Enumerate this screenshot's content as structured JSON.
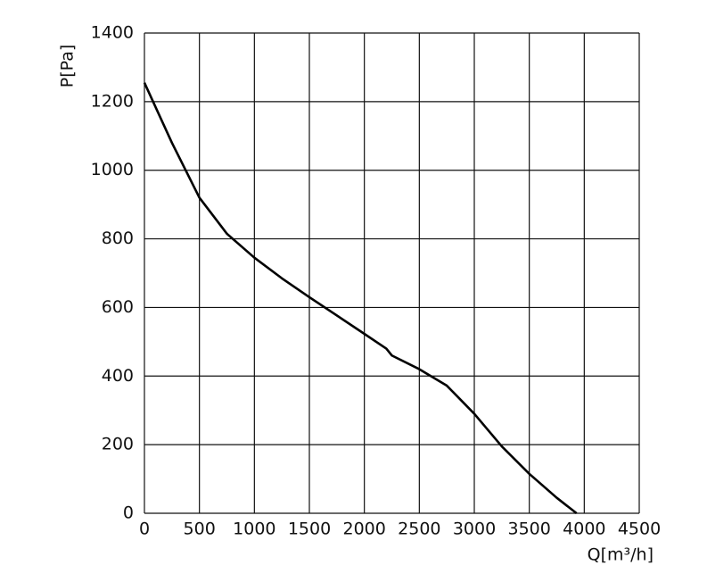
{
  "chart_data": {
    "type": "line",
    "x_label": "Q[m³/h]",
    "y_label": "P[Pa]",
    "xlim": [
      0,
      4500
    ],
    "xticks": [
      0,
      500,
      1000,
      1500,
      2000,
      2500,
      3000,
      3500,
      4000,
      4500
    ],
    "ylim": [
      0,
      1400
    ],
    "yticks": [
      0,
      200,
      400,
      600,
      800,
      1000,
      1200,
      1400
    ],
    "grid": true,
    "series": [
      {
        "color": "#000000",
        "x": [
          0,
          250,
          500,
          750,
          1000,
          1250,
          1500,
          2000,
          2200,
          2250,
          2500,
          2750,
          3000,
          3250,
          3500,
          3750,
          3930
        ],
        "values": [
          1255,
          1080,
          920,
          815,
          745,
          685,
          630,
          523,
          480,
          460,
          420,
          372,
          290,
          195,
          115,
          45,
          0
        ]
      }
    ]
  }
}
